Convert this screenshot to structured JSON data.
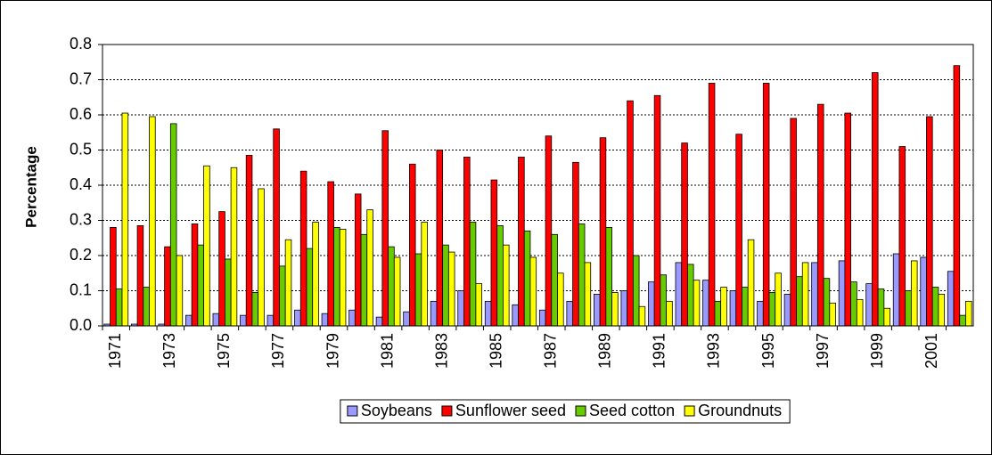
{
  "chart_data": {
    "type": "bar",
    "y_label": "Percentage",
    "categories": [
      "1971",
      null,
      "1973",
      null,
      "1975",
      null,
      "1977",
      null,
      "1979",
      null,
      "1981",
      null,
      "1983",
      null,
      "1985",
      null,
      "1987",
      null,
      "1989",
      null,
      "1991",
      null,
      "1993",
      null,
      "1995",
      null,
      "1997",
      null,
      "1999",
      null,
      "2001",
      null
    ],
    "series": [
      {
        "name": "Soybeans",
        "color": "#9999ff",
        "values": [
          0.005,
          0.005,
          0.005,
          0.03,
          0.035,
          0.03,
          0.03,
          0.045,
          0.035,
          0.045,
          0.025,
          0.04,
          0.07,
          0.1,
          0.07,
          0.06,
          0.045,
          0.07,
          0.09,
          0.1,
          0.125,
          0.18,
          0.13,
          0.1,
          0.07,
          0.09,
          0.18,
          0.185,
          0.12,
          0.205,
          0.195,
          0.155
        ]
      },
      {
        "name": "Sunflower seed",
        "color": "#ff0000",
        "values": [
          0.28,
          0.285,
          0.225,
          0.29,
          0.325,
          0.485,
          0.56,
          0.44,
          0.41,
          0.375,
          0.555,
          0.46,
          0.5,
          0.48,
          0.415,
          0.48,
          0.54,
          0.465,
          0.535,
          0.64,
          0.655,
          0.52,
          0.69,
          0.545,
          0.69,
          0.59,
          0.63,
          0.605,
          0.72,
          0.51,
          0.595,
          0.74
        ]
      },
      {
        "name": "Seed cotton",
        "color": "#66cc00",
        "values": [
          0.105,
          0.11,
          0.575,
          0.23,
          0.19,
          0.095,
          0.17,
          0.22,
          0.28,
          0.26,
          0.225,
          0.205,
          0.23,
          0.295,
          0.285,
          0.27,
          0.26,
          0.29,
          0.28,
          0.2,
          0.145,
          0.175,
          0.07,
          0.11,
          0.095,
          0.14,
          0.135,
          0.125,
          0.105,
          0.1,
          0.11,
          0.03
        ]
      },
      {
        "name": "Groundnuts",
        "color": "#ffff00",
        "values": [
          0.605,
          0.595,
          0.2,
          0.455,
          0.45,
          0.39,
          0.245,
          0.295,
          0.275,
          0.33,
          0.195,
          0.295,
          0.21,
          0.12,
          0.23,
          0.195,
          0.15,
          0.18,
          0.095,
          0.055,
          0.07,
          0.13,
          0.11,
          0.245,
          0.15,
          0.18,
          0.065,
          0.075,
          0.05,
          0.185,
          0.09,
          0.07
        ]
      }
    ],
    "ylim": [
      0,
      0.8
    ],
    "yticks": [
      {
        "value": 0,
        "label": "0.0"
      },
      0.1,
      0.2,
      0.3,
      0.4,
      0.5,
      0.6,
      0.7,
      0.8
    ],
    "grid": true,
    "legend": "bottom"
  }
}
